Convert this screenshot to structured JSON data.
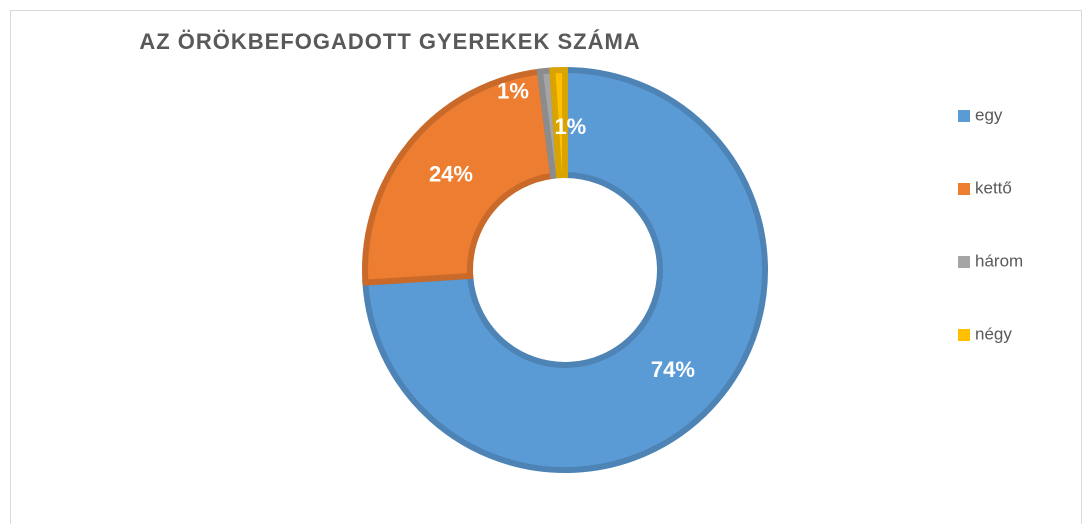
{
  "chart_data": {
    "type": "donut",
    "title": "AZ ÖRÖKBEFOGADOTT GYEREKEK SZÁMA",
    "categories": [
      "egy",
      "kettő",
      "három",
      "négy"
    ],
    "values": [
      74,
      24,
      1,
      1
    ],
    "value_labels": [
      "74%",
      "24%",
      "1%",
      "1%"
    ],
    "colors": [
      "#5b9bd5",
      "#ed7d31",
      "#a5a5a5",
      "#ffc000"
    ],
    "legend": "right"
  }
}
